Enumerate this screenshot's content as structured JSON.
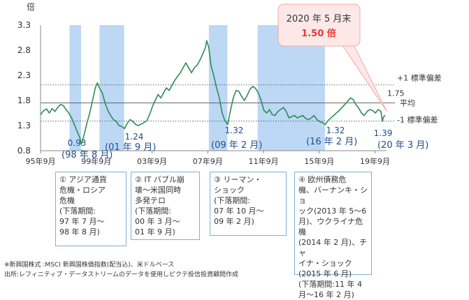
{
  "chart_data": {
    "type": "line",
    "yunit": "倍",
    "ylim": [
      0.8,
      3.3
    ],
    "yticks": [
      "3.3",
      "2.8",
      "2.3",
      "1.8",
      "1.3",
      "0.8"
    ],
    "ytick_values": [
      3.3,
      2.8,
      2.3,
      1.8,
      1.3,
      0.8
    ],
    "xlim": [
      1995.67,
      2020.5
    ],
    "xticks": [
      {
        "label": "95年9月",
        "x": 1995.67
      },
      {
        "label": "99年9月",
        "x": 1999.67
      },
      {
        "label": "03年9月",
        "x": 2003.67
      },
      {
        "label": "07年9月",
        "x": 2007.67
      },
      {
        "label": "11年9月",
        "x": 2011.67
      },
      {
        "label": "15年9月",
        "x": 2015.67
      },
      {
        "label": "19年9月",
        "x": 2019.67
      }
    ],
    "reference_lines": [
      {
        "label": "+1 標準偏差",
        "value": 2.11,
        "style": "dotted"
      },
      {
        "label": "平均",
        "value": 1.75,
        "style": "solid"
      },
      {
        "label": "-1 標準偏差",
        "value": 1.39,
        "style": "dotted"
      }
    ],
    "mean_value_label": "1.75",
    "shaded_periods": [
      {
        "id": "①",
        "start": 1997.75,
        "end": 1998.58
      },
      {
        "id": "①",
        "start": 1999.9,
        "end": 2000.8
      },
      {
        "id": "②",
        "start": 2000.17,
        "end": 2001.67
      },
      {
        "id": "③",
        "start": 2007.75,
        "end": 2009.08
      },
      {
        "id": "④",
        "start": 2011.25,
        "end": 2016.08
      }
    ],
    "series": [
      {
        "color": "#2e8b57",
        "points": [
          [
            1995.67,
            1.52
          ],
          [
            1995.9,
            1.6
          ],
          [
            1996.1,
            1.63
          ],
          [
            1996.3,
            1.55
          ],
          [
            1996.5,
            1.64
          ],
          [
            1996.7,
            1.58
          ],
          [
            1996.9,
            1.66
          ],
          [
            1997.1,
            1.72
          ],
          [
            1997.3,
            1.7
          ],
          [
            1997.5,
            1.62
          ],
          [
            1997.7,
            1.55
          ],
          [
            1997.9,
            1.45
          ],
          [
            1998.1,
            1.32
          ],
          [
            1998.3,
            1.18
          ],
          [
            1998.5,
            1.05
          ],
          [
            1998.6,
            0.93
          ],
          [
            1998.8,
            1.12
          ],
          [
            1999.0,
            1.35
          ],
          [
            1999.2,
            1.55
          ],
          [
            1999.4,
            1.8
          ],
          [
            1999.6,
            2.05
          ],
          [
            1999.75,
            2.15
          ],
          [
            1999.9,
            2.05
          ],
          [
            2000.1,
            1.95
          ],
          [
            2000.3,
            1.75
          ],
          [
            2000.5,
            1.6
          ],
          [
            2000.7,
            1.5
          ],
          [
            2000.9,
            1.42
          ],
          [
            2001.1,
            1.38
          ],
          [
            2001.3,
            1.3
          ],
          [
            2001.5,
            1.28
          ],
          [
            2001.7,
            1.24
          ],
          [
            2001.9,
            1.35
          ],
          [
            2002.1,
            1.42
          ],
          [
            2002.3,
            1.38
          ],
          [
            2002.5,
            1.32
          ],
          [
            2002.7,
            1.3
          ],
          [
            2002.9,
            1.33
          ],
          [
            2003.1,
            1.36
          ],
          [
            2003.3,
            1.4
          ],
          [
            2003.5,
            1.52
          ],
          [
            2003.7,
            1.68
          ],
          [
            2003.9,
            1.8
          ],
          [
            2004.1,
            1.92
          ],
          [
            2004.3,
            1.85
          ],
          [
            2004.5,
            1.95
          ],
          [
            2004.7,
            2.05
          ],
          [
            2004.9,
            2.0
          ],
          [
            2005.1,
            2.1
          ],
          [
            2005.3,
            2.2
          ],
          [
            2005.5,
            2.28
          ],
          [
            2005.7,
            2.35
          ],
          [
            2005.9,
            2.45
          ],
          [
            2006.1,
            2.55
          ],
          [
            2006.3,
            2.45
          ],
          [
            2006.5,
            2.35
          ],
          [
            2006.7,
            2.45
          ],
          [
            2006.9,
            2.5
          ],
          [
            2007.1,
            2.6
          ],
          [
            2007.3,
            2.72
          ],
          [
            2007.5,
            2.85
          ],
          [
            2007.6,
            2.99
          ],
          [
            2007.75,
            2.85
          ],
          [
            2007.9,
            2.5
          ],
          [
            2008.1,
            2.3
          ],
          [
            2008.3,
            2.05
          ],
          [
            2008.5,
            1.85
          ],
          [
            2008.7,
            1.55
          ],
          [
            2008.9,
            1.4
          ],
          [
            2009.1,
            1.32
          ],
          [
            2009.3,
            1.6
          ],
          [
            2009.5,
            1.85
          ],
          [
            2009.7,
            2.0
          ],
          [
            2009.9,
            1.98
          ],
          [
            2010.1,
            1.88
          ],
          [
            2010.3,
            1.8
          ],
          [
            2010.5,
            1.9
          ],
          [
            2010.7,
            2.02
          ],
          [
            2010.9,
            2.08
          ],
          [
            2011.1,
            2.04
          ],
          [
            2011.3,
            1.95
          ],
          [
            2011.5,
            1.8
          ],
          [
            2011.7,
            1.6
          ],
          [
            2011.9,
            1.55
          ],
          [
            2012.1,
            1.62
          ],
          [
            2012.3,
            1.52
          ],
          [
            2012.5,
            1.5
          ],
          [
            2012.7,
            1.58
          ],
          [
            2012.9,
            1.62
          ],
          [
            2013.1,
            1.66
          ],
          [
            2013.3,
            1.58
          ],
          [
            2013.5,
            1.45
          ],
          [
            2013.7,
            1.48
          ],
          [
            2013.9,
            1.5
          ],
          [
            2014.1,
            1.45
          ],
          [
            2014.3,
            1.48
          ],
          [
            2014.5,
            1.5
          ],
          [
            2014.7,
            1.44
          ],
          [
            2014.9,
            1.42
          ],
          [
            2015.1,
            1.45
          ],
          [
            2015.3,
            1.5
          ],
          [
            2015.5,
            1.42
          ],
          [
            2015.7,
            1.38
          ],
          [
            2015.9,
            1.36
          ],
          [
            2016.1,
            1.32
          ],
          [
            2016.3,
            1.4
          ],
          [
            2016.5,
            1.45
          ],
          [
            2016.7,
            1.5
          ],
          [
            2016.9,
            1.55
          ],
          [
            2017.1,
            1.6
          ],
          [
            2017.3,
            1.66
          ],
          [
            2017.5,
            1.72
          ],
          [
            2017.7,
            1.78
          ],
          [
            2017.9,
            1.85
          ],
          [
            2018.1,
            1.82
          ],
          [
            2018.3,
            1.72
          ],
          [
            2018.5,
            1.65
          ],
          [
            2018.7,
            1.55
          ],
          [
            2018.9,
            1.5
          ],
          [
            2019.1,
            1.58
          ],
          [
            2019.3,
            1.62
          ],
          [
            2019.5,
            1.6
          ],
          [
            2019.7,
            1.55
          ],
          [
            2019.9,
            1.62
          ],
          [
            2020.1,
            1.58
          ],
          [
            2020.2,
            1.39
          ],
          [
            2020.3,
            1.48
          ],
          [
            2020.42,
            1.5
          ]
        ]
      }
    ],
    "annotations": [
      {
        "value": "0.93",
        "period": "(98 年 8 月)"
      },
      {
        "value": "1.24",
        "period": "(01 年 9 月)"
      },
      {
        "value": "1.32",
        "period": "(09 年 2 月)"
      },
      {
        "value": "1.32",
        "period": "(16 年 2 月)"
      },
      {
        "value": "1.39",
        "period": "(20 年 3 月)"
      }
    ],
    "callout": {
      "line1": "2020 年 5 月末",
      "line2": "1.50 倍"
    }
  },
  "boxes": [
    {
      "text": "①  アジア通貨\n危機・ロシア\n危機\n(下落期間:\n97 年 7 月～\n98 年 8 月)"
    },
    {
      "text": "②  IT バブル崩\n壊～米国同時\n多発テロ\n(下落期間:\n00 年 3 月～\n01 年 9 月)"
    },
    {
      "text": "③  リーマン・\nショック\n(下落期間:\n07 年 10 月～\n09 年 2 月)"
    },
    {
      "text": "④  欧州債務危\n機、バーナンキ・ショ\nック(2013 年 5～6\n月)、ウクライナ危機\n(2014 年 2 月)、チャ\nイナ・ショック\n(2015 年 6 月)\n(下落期間:11 年 4\n月～16 年 2 月)"
    }
  ],
  "footnotes": [
    "※新興国株式 :MSCI 新興国株価指数(配当込)、米ドルベース",
    "出所:レフィニティブ・データストリームのデータを使用しピクテ投信投資顧問作成"
  ],
  "colors": {
    "line": "#2e8b57",
    "shade": "#bcd8f5",
    "annot": "#1f4e8a",
    "callout_text": "#e53935",
    "callout_bg": "#fde8e8",
    "callout_border": "#f4a6a6"
  }
}
